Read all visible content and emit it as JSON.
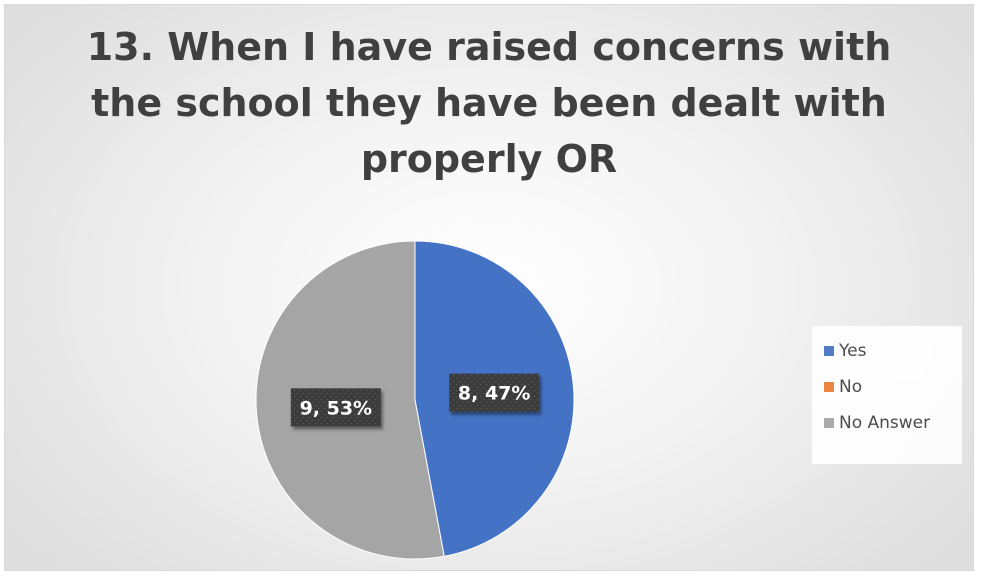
{
  "chart_data": {
    "type": "pie",
    "title": "13. When I have raised concerns with the school they have been dealt with properly OR",
    "categories": [
      "Yes",
      "No",
      "No Answer"
    ],
    "values": [
      8,
      0,
      9
    ],
    "percent_labels": [
      "47%",
      "0%",
      "53%"
    ],
    "data_labels": [
      "8, 47%",
      "",
      "9, 53%"
    ],
    "colors": [
      "#4472C4",
      "#ED7D31",
      "#A5A5A5"
    ],
    "legend_position": "right",
    "start_angle_deg": 0,
    "direction": "clockwise"
  }
}
